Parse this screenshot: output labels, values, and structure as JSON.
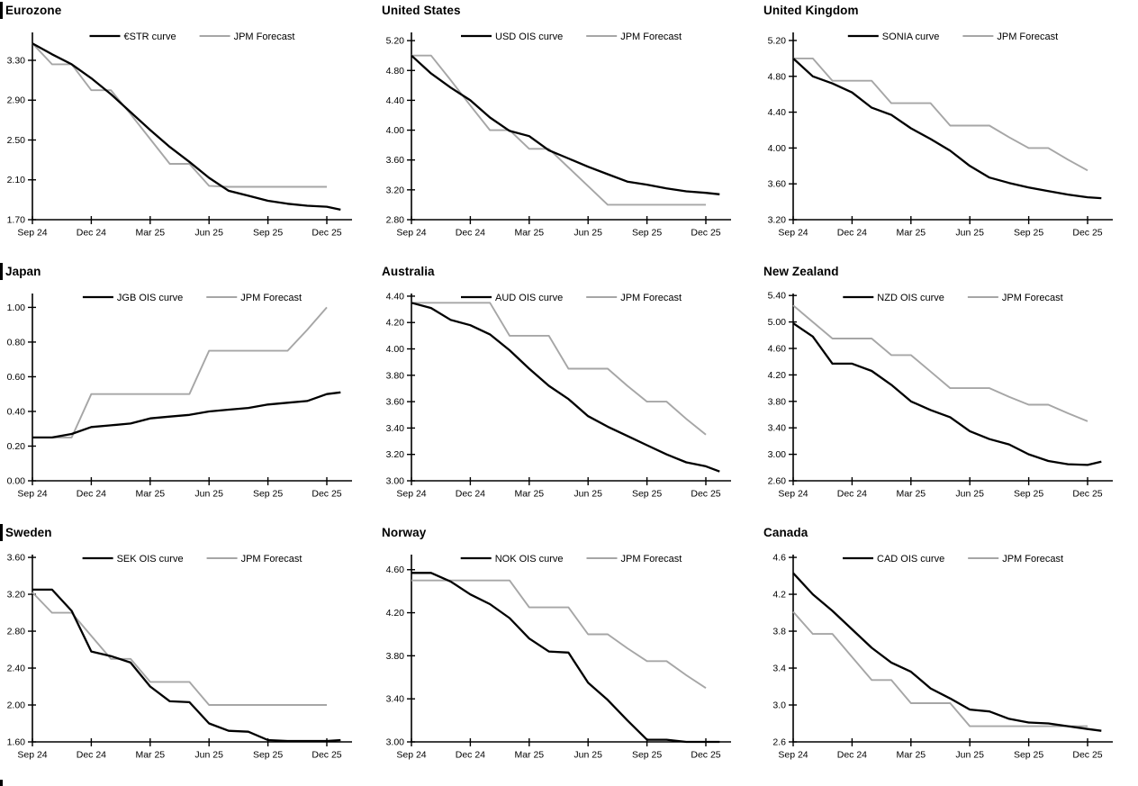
{
  "page": {
    "description": "Grid of nine policy-rate OIS curve charts versus JPM forecasts",
    "bottom_left_next_section_stub": true,
    "forecast_color": "#a6a6a6",
    "curve_color": "#000000"
  },
  "chart_data": [
    {
      "type": "line",
      "title": "Eurozone",
      "left_title_bar": true,
      "x_unit": "months from Sep 2024",
      "x_tick_labels": [
        "Sep 24",
        "Dec 24",
        "Mar 25",
        "Jun 25",
        "Sep 25",
        "Dec 25"
      ],
      "x_tick_positions": [
        0,
        3,
        6,
        9,
        12,
        15
      ],
      "y_min": 1.7,
      "y_axis_top": 3.58,
      "y_tick_labels": [
        "1.70",
        "2.10",
        "2.50",
        "2.90",
        "3.30"
      ],
      "y_tick_values": [
        1.7,
        2.1,
        2.5,
        2.9,
        3.3
      ],
      "legend_position": "top-center",
      "series": [
        {
          "name": "€STR curve",
          "color": "#000000",
          "stroke_width": 2.3,
          "x": [
            0,
            1,
            2,
            3,
            4,
            5,
            6,
            7,
            8,
            9,
            10,
            11,
            12,
            13,
            14,
            15,
            15.7
          ],
          "y": [
            3.47,
            3.36,
            3.26,
            3.12,
            2.96,
            2.78,
            2.6,
            2.43,
            2.28,
            2.12,
            1.99,
            1.94,
            1.89,
            1.86,
            1.84,
            1.83,
            1.8
          ]
        },
        {
          "name": "JPM Forecast",
          "color": "#a6a6a6",
          "stroke_width": 1.9,
          "x": [
            0,
            1,
            2,
            3,
            4,
            5,
            6,
            7,
            8,
            9,
            10,
            11,
            12,
            13,
            14,
            15
          ],
          "y": [
            3.47,
            3.26,
            3.26,
            3.0,
            3.0,
            2.76,
            2.51,
            2.26,
            2.26,
            2.04,
            2.03,
            2.03,
            2.03,
            2.03,
            2.03,
            2.03
          ]
        }
      ]
    },
    {
      "type": "line",
      "title": "United States",
      "left_title_bar": false,
      "x_unit": "months from Sep 2024",
      "x_tick_labels": [
        "Sep 24",
        "Dec 24",
        "Mar 25",
        "Jun 25",
        "Sep 25",
        "Dec 25"
      ],
      "x_tick_positions": [
        0,
        3,
        6,
        9,
        12,
        15
      ],
      "y_min": 2.8,
      "y_axis_top": 5.31,
      "y_tick_labels": [
        "2.80",
        "3.20",
        "3.60",
        "4.00",
        "4.40",
        "4.80",
        "5.20"
      ],
      "y_tick_values": [
        2.8,
        3.2,
        3.6,
        4.0,
        4.4,
        4.8,
        5.2
      ],
      "legend_position": "top-center",
      "series": [
        {
          "name": "USD OIS curve",
          "color": "#000000",
          "stroke_width": 2.3,
          "x": [
            0,
            1,
            2,
            3,
            4,
            5,
            6,
            7,
            8,
            9,
            10,
            11,
            12,
            13,
            14,
            15,
            15.7
          ],
          "y": [
            5.0,
            4.76,
            4.57,
            4.4,
            4.17,
            3.99,
            3.92,
            3.73,
            3.62,
            3.51,
            3.41,
            3.31,
            3.27,
            3.22,
            3.18,
            3.16,
            3.14
          ]
        },
        {
          "name": "JPM Forecast",
          "color": "#a6a6a6",
          "stroke_width": 1.9,
          "x": [
            0,
            1,
            2,
            3,
            4,
            5,
            6,
            7,
            8,
            9,
            10,
            11,
            12,
            13,
            14,
            15
          ],
          "y": [
            5.0,
            5.0,
            4.67,
            4.33,
            4.0,
            4.0,
            3.75,
            3.75,
            3.5,
            3.25,
            3.0,
            3.0,
            3.0,
            3.0,
            3.0,
            3.0
          ]
        }
      ]
    },
    {
      "type": "line",
      "title": "United Kingdom",
      "left_title_bar": false,
      "x_unit": "months from Sep 2024",
      "x_tick_labels": [
        "Sep 24",
        "Dec 24",
        "Mar 25",
        "Jun 25",
        "Sep 25",
        "Dec 25"
      ],
      "x_tick_positions": [
        0,
        3,
        6,
        9,
        12,
        15
      ],
      "y_min": 3.2,
      "y_axis_top": 5.29,
      "y_tick_labels": [
        "3.20",
        "3.60",
        "4.00",
        "4.40",
        "4.80",
        "5.20"
      ],
      "y_tick_values": [
        3.2,
        3.6,
        4.0,
        4.4,
        4.8,
        5.2
      ],
      "legend_position": "top-center",
      "series": [
        {
          "name": "SONIA curve",
          "color": "#000000",
          "stroke_width": 2.3,
          "x": [
            0,
            1,
            2,
            3,
            4,
            5,
            6,
            7,
            8,
            9,
            10,
            11,
            12,
            13,
            14,
            15,
            15.7
          ],
          "y": [
            5.0,
            4.8,
            4.72,
            4.62,
            4.45,
            4.37,
            4.22,
            4.1,
            3.97,
            3.8,
            3.67,
            3.61,
            3.56,
            3.52,
            3.48,
            3.45,
            3.44
          ]
        },
        {
          "name": "JPM Forecast",
          "color": "#a6a6a6",
          "stroke_width": 1.9,
          "x": [
            0,
            1,
            2,
            3,
            4,
            5,
            6,
            7,
            8,
            9,
            10,
            11,
            12,
            13,
            14,
            15
          ],
          "y": [
            5.0,
            5.0,
            4.75,
            4.75,
            4.75,
            4.5,
            4.5,
            4.5,
            4.25,
            4.25,
            4.25,
            4.12,
            4.0,
            4.0,
            3.87,
            3.75
          ]
        }
      ]
    },
    {
      "type": "line",
      "title": "Japan",
      "left_title_bar": true,
      "x_unit": "months from Sep 2024",
      "x_tick_labels": [
        "Sep 24",
        "Dec 24",
        "Mar 25",
        "Jun 25",
        "Sep 25",
        "Dec 25"
      ],
      "x_tick_positions": [
        0,
        3,
        6,
        9,
        12,
        15
      ],
      "y_min": 0.0,
      "y_axis_top": 1.08,
      "y_tick_labels": [
        "0.00",
        "0.20",
        "0.40",
        "0.60",
        "0.80",
        "1.00"
      ],
      "y_tick_values": [
        0.0,
        0.2,
        0.4,
        0.6,
        0.8,
        1.0
      ],
      "legend_position": "top-center",
      "series": [
        {
          "name": "JGB OIS curve",
          "color": "#000000",
          "stroke_width": 2.3,
          "x": [
            0,
            1,
            2,
            3,
            4,
            5,
            6,
            7,
            8,
            9,
            10,
            11,
            12,
            13,
            14,
            15,
            15.7
          ],
          "y": [
            0.25,
            0.25,
            0.27,
            0.31,
            0.32,
            0.33,
            0.36,
            0.37,
            0.38,
            0.4,
            0.41,
            0.42,
            0.44,
            0.45,
            0.46,
            0.5,
            0.51
          ]
        },
        {
          "name": "JPM Forecast",
          "color": "#a6a6a6",
          "stroke_width": 1.9,
          "x": [
            0,
            1,
            2,
            3,
            4,
            5,
            6,
            7,
            8,
            9,
            10,
            11,
            12,
            13,
            14,
            15
          ],
          "y": [
            0.25,
            0.25,
            0.25,
            0.5,
            0.5,
            0.5,
            0.5,
            0.5,
            0.5,
            0.75,
            0.75,
            0.75,
            0.75,
            0.75,
            0.87,
            1.0
          ]
        }
      ]
    },
    {
      "type": "line",
      "title": "Australia",
      "left_title_bar": false,
      "x_unit": "months from Sep 2024",
      "x_tick_labels": [
        "Sep 24",
        "Dec 24",
        "Mar 25",
        "Jun 25",
        "Sep 25",
        "Dec 25"
      ],
      "x_tick_positions": [
        0,
        3,
        6,
        9,
        12,
        15
      ],
      "y_min": 3.0,
      "y_axis_top": 4.42,
      "y_tick_labels": [
        "3.00",
        "3.20",
        "3.40",
        "3.60",
        "3.80",
        "4.00",
        "4.20",
        "4.40"
      ],
      "y_tick_values": [
        3.0,
        3.2,
        3.4,
        3.6,
        3.8,
        4.0,
        4.2,
        4.4
      ],
      "legend_position": "top-center",
      "series": [
        {
          "name": "AUD OIS curve",
          "color": "#000000",
          "stroke_width": 2.3,
          "x": [
            0,
            1,
            2,
            3,
            4,
            5,
            6,
            7,
            8,
            9,
            10,
            11,
            12,
            13,
            14,
            15,
            15.7
          ],
          "y": [
            4.35,
            4.31,
            4.22,
            4.18,
            4.11,
            3.99,
            3.85,
            3.72,
            3.62,
            3.49,
            3.41,
            3.34,
            3.27,
            3.2,
            3.14,
            3.11,
            3.07
          ]
        },
        {
          "name": "JPM Forecast",
          "color": "#a6a6a6",
          "stroke_width": 1.9,
          "x": [
            0,
            1,
            2,
            3,
            4,
            5,
            6,
            7,
            8,
            9,
            10,
            11,
            12,
            13,
            14,
            15
          ],
          "y": [
            4.35,
            4.35,
            4.35,
            4.35,
            4.35,
            4.1,
            4.1,
            4.1,
            3.85,
            3.85,
            3.85,
            3.72,
            3.6,
            3.6,
            3.47,
            3.35
          ]
        }
      ]
    },
    {
      "type": "line",
      "title": "New Zealand",
      "left_title_bar": false,
      "x_unit": "months from Sep 2024",
      "x_tick_labels": [
        "Sep 24",
        "Dec 24",
        "Mar 25",
        "Jun 25",
        "Sep 25",
        "Dec 25"
      ],
      "x_tick_positions": [
        0,
        3,
        6,
        9,
        12,
        15
      ],
      "y_min": 2.6,
      "y_axis_top": 5.43,
      "y_tick_labels": [
        "2.60",
        "3.00",
        "3.40",
        "3.80",
        "4.20",
        "4.60",
        "5.00",
        "5.40"
      ],
      "y_tick_values": [
        2.6,
        3.0,
        3.4,
        3.8,
        4.2,
        4.6,
        5.0,
        5.4
      ],
      "legend_position": "top-center",
      "series": [
        {
          "name": "NZD OIS curve",
          "color": "#000000",
          "stroke_width": 2.3,
          "x": [
            0,
            1,
            2,
            3,
            4,
            5,
            6,
            7,
            8,
            9,
            10,
            11,
            12,
            13,
            14,
            15,
            15.7
          ],
          "y": [
            4.98,
            4.78,
            4.37,
            4.37,
            4.26,
            4.05,
            3.8,
            3.67,
            3.56,
            3.35,
            3.23,
            3.15,
            3.0,
            2.9,
            2.85,
            2.84,
            2.89
          ]
        },
        {
          "name": "JPM Forecast",
          "color": "#a6a6a6",
          "stroke_width": 1.9,
          "x": [
            0,
            1,
            2,
            3,
            4,
            5,
            6,
            7,
            8,
            9,
            10,
            11,
            12,
            13,
            14,
            15
          ],
          "y": [
            5.25,
            5.0,
            4.75,
            4.75,
            4.75,
            4.5,
            4.5,
            4.25,
            4.0,
            4.0,
            4.0,
            3.87,
            3.75,
            3.75,
            3.62,
            3.5
          ]
        }
      ]
    },
    {
      "type": "line",
      "title": "Sweden",
      "left_title_bar": true,
      "x_unit": "months from Sep 2024",
      "x_tick_labels": [
        "Sep 24",
        "Dec 24",
        "Mar 25",
        "Jun 25",
        "Sep 25",
        "Dec 25"
      ],
      "x_tick_positions": [
        0,
        3,
        6,
        9,
        12,
        15
      ],
      "y_min": 1.6,
      "y_axis_top": 3.63,
      "y_tick_labels": [
        "1.60",
        "2.00",
        "2.40",
        "2.80",
        "3.20",
        "3.60"
      ],
      "y_tick_values": [
        1.6,
        2.0,
        2.4,
        2.8,
        3.2,
        3.6
      ],
      "legend_position": "top-center",
      "series": [
        {
          "name": "SEK OIS curve",
          "color": "#000000",
          "stroke_width": 2.3,
          "x": [
            0,
            1,
            2,
            3,
            4,
            5,
            6,
            7,
            8,
            9,
            10,
            11,
            12,
            13,
            14,
            15,
            15.7
          ],
          "y": [
            3.25,
            3.25,
            3.02,
            2.58,
            2.53,
            2.46,
            2.2,
            2.04,
            2.03,
            1.8,
            1.72,
            1.71,
            1.62,
            1.61,
            1.61,
            1.61,
            1.62
          ]
        },
        {
          "name": "JPM Forecast",
          "color": "#a6a6a6",
          "stroke_width": 1.9,
          "x": [
            0,
            1,
            2,
            3,
            4,
            5,
            6,
            7,
            8,
            9,
            10,
            11,
            12,
            13,
            14,
            15
          ],
          "y": [
            3.22,
            3.0,
            3.0,
            2.75,
            2.5,
            2.5,
            2.25,
            2.25,
            2.25,
            2.0,
            2.0,
            2.0,
            2.0,
            2.0,
            2.0,
            2.0
          ]
        }
      ]
    },
    {
      "type": "line",
      "title": "Norway",
      "left_title_bar": false,
      "x_unit": "months from Sep 2024",
      "x_tick_labels": [
        "Sep 24",
        "Dec 24",
        "Mar 25",
        "Jun 25",
        "Sep 25",
        "Dec 25"
      ],
      "x_tick_positions": [
        0,
        3,
        6,
        9,
        12,
        15
      ],
      "y_min": 3.0,
      "y_axis_top": 4.74,
      "y_tick_labels": [
        "3.00",
        "3.40",
        "3.80",
        "4.20",
        "4.60"
      ],
      "y_tick_values": [
        3.0,
        3.4,
        3.8,
        4.2,
        4.6
      ],
      "legend_position": "top-center",
      "series": [
        {
          "name": "NOK OIS curve",
          "color": "#000000",
          "stroke_width": 2.3,
          "x": [
            0,
            1,
            2,
            3,
            4,
            5,
            6,
            7,
            8,
            9,
            10,
            11,
            12,
            13,
            14,
            15,
            15.7
          ],
          "y": [
            4.57,
            4.57,
            4.49,
            4.37,
            4.28,
            4.15,
            3.96,
            3.84,
            3.83,
            3.55,
            3.39,
            3.2,
            3.02,
            3.02,
            3.0,
            3.0,
            3.0
          ]
        },
        {
          "name": "JPM Forecast",
          "color": "#a6a6a6",
          "stroke_width": 1.9,
          "x": [
            0,
            1,
            2,
            3,
            4,
            5,
            6,
            7,
            8,
            9,
            10,
            11,
            12,
            13,
            14,
            15
          ],
          "y": [
            4.5,
            4.5,
            4.5,
            4.5,
            4.5,
            4.5,
            4.25,
            4.25,
            4.25,
            4.0,
            4.0,
            3.87,
            3.75,
            3.75,
            3.62,
            3.5
          ]
        }
      ]
    },
    {
      "type": "line",
      "title": "Canada",
      "left_title_bar": false,
      "x_unit": "months from Sep 2024",
      "x_tick_labels": [
        "Sep 24",
        "Dec 24",
        "Mar 25",
        "Jun 25",
        "Sep 25",
        "Dec 25"
      ],
      "x_tick_positions": [
        0,
        3,
        6,
        9,
        12,
        15
      ],
      "y_min": 2.6,
      "y_axis_top": 4.63,
      "y_tick_labels": [
        "2.6",
        "3.0",
        "3.4",
        "3.8",
        "4.2",
        "4.6"
      ],
      "y_tick_values": [
        2.6,
        3.0,
        3.4,
        3.8,
        4.2,
        4.6
      ],
      "legend_position": "top-center",
      "series": [
        {
          "name": "CAD OIS curve",
          "color": "#000000",
          "stroke_width": 2.3,
          "x": [
            0,
            1,
            2,
            3,
            4,
            5,
            6,
            7,
            8,
            9,
            10,
            11,
            12,
            13,
            14,
            15,
            15.7
          ],
          "y": [
            4.43,
            4.2,
            4.02,
            3.82,
            3.62,
            3.46,
            3.36,
            3.18,
            3.07,
            2.95,
            2.93,
            2.85,
            2.81,
            2.8,
            2.77,
            2.74,
            2.72
          ]
        },
        {
          "name": "JPM Forecast",
          "color": "#a6a6a6",
          "stroke_width": 1.9,
          "x": [
            0,
            1,
            2,
            3,
            4,
            5,
            6,
            7,
            8,
            9,
            10,
            11,
            12,
            13,
            14,
            15
          ],
          "y": [
            4.01,
            3.77,
            3.77,
            3.52,
            3.27,
            3.27,
            3.02,
            3.02,
            3.02,
            2.77,
            2.77,
            2.77,
            2.77,
            2.77,
            2.77,
            2.77
          ]
        }
      ]
    }
  ]
}
